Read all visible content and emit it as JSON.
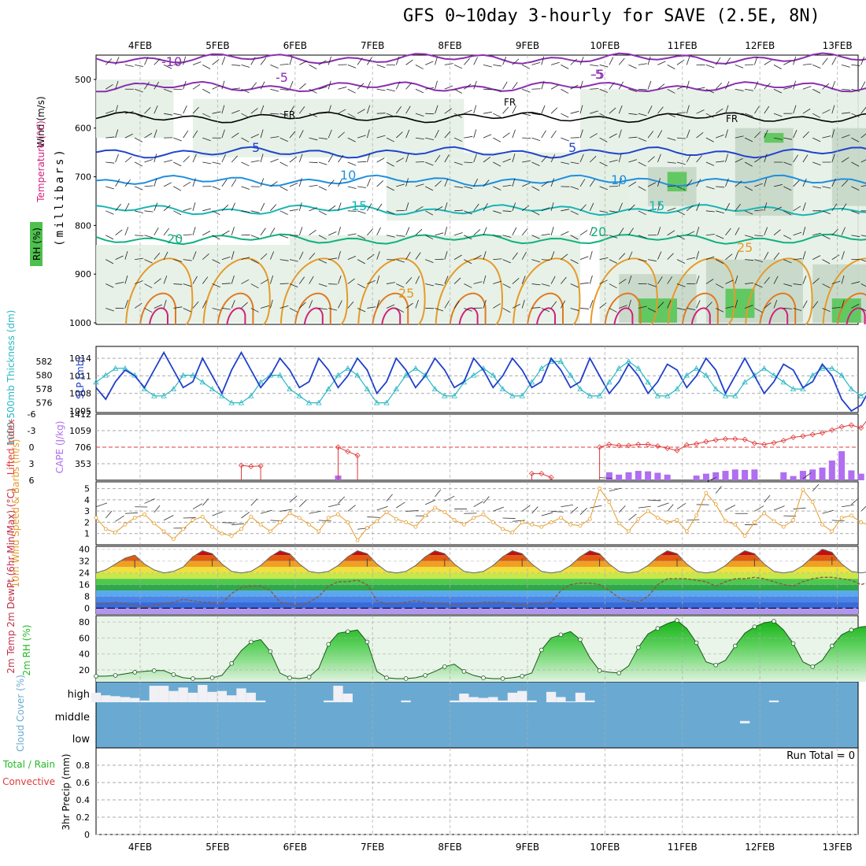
{
  "title": "GFS 0~10day 3-hourly for SAVE (2.5E, 8N)",
  "run_total_label": "Run Total = 0",
  "colors": {
    "grid": "#aaaaaa",
    "slp": "#1f3fcc",
    "thickness": "#2ab8c4",
    "li": "#e03a3a",
    "cape": "#b06ef0",
    "wind": "#e69a28",
    "dewpt": "#8a5a40",
    "rh": "#22bb22",
    "cloud": "#6aaad2",
    "cloud_white": "#f0f0f5"
  },
  "chart_data": [
    {
      "panel": "vertical_profile",
      "type": "line",
      "x_dates": [
        "4FEB",
        "5FEB",
        "6FEB",
        "7FEB",
        "8FEB",
        "9FEB",
        "10FEB",
        "11FEB",
        "12FEB",
        "13FEB"
      ],
      "ylabel": "(millibars)",
      "y_ticks": [
        "500",
        "600",
        "700",
        "800",
        "900",
        "1000"
      ],
      "ylim": [
        1000,
        450
      ],
      "legend": [
        "RH (%)",
        "Temperature (°C)",
        "Wind (m/s)"
      ],
      "isotherm_labels": [
        "-10",
        "-5",
        "FR",
        "FR",
        "FR",
        "-5",
        "5",
        "5",
        "10",
        "10",
        "15",
        "15",
        "20",
        "20",
        "25",
        "25",
        "-5"
      ],
      "isotherms": [
        {
          "label": "-10",
          "color": "#8a2fb0",
          "level": 457
        },
        {
          "label": "-5",
          "color": "#8a2fb0",
          "level": 515
        },
        {
          "label": "FR",
          "color": "#000000",
          "level": 578
        },
        {
          "label": "5",
          "color": "#2244cc",
          "level": 650
        },
        {
          "label": "10",
          "color": "#1f8fdf",
          "level": 708
        },
        {
          "label": "15",
          "color": "#18b4b4",
          "level": 768
        },
        {
          "label": "20",
          "color": "#10b080",
          "level": 828
        }
      ]
    },
    {
      "panel": "slp_thickness",
      "type": "line",
      "ylabel_left": "1000-500mb Thickness (dm)",
      "ylabel_right": "SLP (mb)",
      "left_ticks": [
        "576",
        "578",
        "580",
        "582"
      ],
      "right_ticks": [
        "1005",
        "1008",
        "1011",
        "1014"
      ],
      "series": [
        {
          "name": "SLP (mb)",
          "values": [
            1009,
            1007,
            1010,
            1012,
            1011,
            1009,
            1012,
            1015,
            1012,
            1009,
            1010,
            1014,
            1011,
            1008,
            1012,
            1015,
            1012,
            1009,
            1011,
            1014,
            1012,
            1009,
            1010,
            1014,
            1012,
            1009,
            1011,
            1014,
            1012,
            1008,
            1010,
            1014,
            1012,
            1009,
            1011,
            1014,
            1012,
            1009,
            1010,
            1014,
            1012,
            1009,
            1011,
            1014,
            1012,
            1009,
            1010,
            1014,
            1012,
            1009,
            1010,
            1014,
            1011,
            1008,
            1010,
            1013,
            1011,
            1008,
            1010,
            1013,
            1012,
            1009,
            1011,
            1014,
            1012,
            1008,
            1011,
            1014,
            1011,
            1008,
            1010,
            1013,
            1012,
            1009,
            1010,
            1013,
            1011,
            1007,
            1005,
            1006,
            1009,
            1012,
            1011,
            1009,
            1012,
            1013,
            1011,
            1008,
            1006,
            1007,
            1010,
            1012,
            1010,
            1008,
            1009,
            1010,
            1010
          ]
        },
        {
          "name": "Thickness (dm)",
          "values": [
            579,
            580,
            581,
            581,
            580,
            578,
            577,
            577,
            578,
            580,
            580,
            579,
            578,
            577,
            576,
            576,
            577,
            579,
            580,
            580,
            578,
            577,
            576,
            576,
            578,
            580,
            581,
            580,
            578,
            576,
            576,
            578,
            580,
            581,
            580,
            578,
            577,
            577,
            579,
            580,
            581,
            580,
            578,
            577,
            577,
            579,
            581,
            582,
            582,
            580,
            578,
            577,
            577,
            579,
            581,
            582,
            581,
            579,
            577,
            577,
            578,
            580,
            581,
            580,
            578,
            577,
            577,
            579,
            580,
            581,
            580,
            579,
            578,
            578,
            580,
            581,
            581,
            580,
            578,
            577,
            578,
            580,
            581,
            582,
            581,
            580,
            579,
            578,
            579,
            581,
            582,
            583,
            582,
            580,
            579,
            579,
            580
          ]
        }
      ]
    },
    {
      "panel": "li_cape",
      "type": "line+bar",
      "ylabel_left": "Lifted Index",
      "ylabel_right": "CAPE (J/kg)",
      "left_ticks": [
        "-6",
        "-3",
        "0",
        "3",
        "6"
      ],
      "right_ticks": [
        "353",
        "706",
        "1059",
        "1412"
      ],
      "li_series": [
        {
          "start": 15,
          "values": [
            3.3,
            3.5,
            3.4
          ]
        },
        {
          "start": 25,
          "values": [
            0,
            0.8,
            1.5
          ]
        },
        {
          "start": 45,
          "values": [
            4.8,
            4.8,
            5.5
          ]
        },
        {
          "start": 52,
          "values": [
            0,
            -0.5,
            -0.3,
            -0.3,
            -0.5,
            -0.5,
            -0.2,
            0.2,
            0.6,
            -0.4,
            -0.6,
            -1.0,
            -1.3,
            -1.5,
            -1.5,
            -1.4,
            -0.7,
            -0.5,
            -0.8,
            -1.2,
            -1.8,
            -2.0,
            -2.3,
            -2.6,
            -3.1,
            -3.7,
            -4.0,
            -3.5,
            -5.7,
            -5.0,
            -4.8,
            -4.5,
            -4.3,
            -4.0,
            -3.7,
            -3.3,
            -3.0,
            -2.8,
            -3.5,
            -5.2,
            -4.7,
            -4.3,
            -3.9,
            -3.4
          ]
        }
      ],
      "cape_bars": [
        {
          "i": 25,
          "v": 100
        },
        {
          "i": 53,
          "v": 170
        },
        {
          "i": 54,
          "v": 120
        },
        {
          "i": 55,
          "v": 170
        },
        {
          "i": 56,
          "v": 200
        },
        {
          "i": 57,
          "v": 190
        },
        {
          "i": 58,
          "v": 160
        },
        {
          "i": 59,
          "v": 120
        },
        {
          "i": 62,
          "v": 100
        },
        {
          "i": 63,
          "v": 140
        },
        {
          "i": 64,
          "v": 170
        },
        {
          "i": 65,
          "v": 200
        },
        {
          "i": 66,
          "v": 230
        },
        {
          "i": 67,
          "v": 220
        },
        {
          "i": 68,
          "v": 230
        },
        {
          "i": 71,
          "v": 170
        },
        {
          "i": 72,
          "v": 90
        },
        {
          "i": 73,
          "v": 200
        },
        {
          "i": 74,
          "v": 230
        },
        {
          "i": 75,
          "v": 270
        },
        {
          "i": 76,
          "v": 420
        },
        {
          "i": 77,
          "v": 620
        },
        {
          "i": 78,
          "v": 210
        },
        {
          "i": 79,
          "v": 140
        },
        {
          "i": 80,
          "v": 1150
        },
        {
          "i": 81,
          "v": 1260
        },
        {
          "i": 82,
          "v": 1080
        },
        {
          "i": 83,
          "v": 960
        },
        {
          "i": 84,
          "v": 850
        },
        {
          "i": 85,
          "v": 1070
        },
        {
          "i": 86,
          "v": 1090
        },
        {
          "i": 87,
          "v": 1010
        },
        {
          "i": 88,
          "v": 30
        },
        {
          "i": 90,
          "v": 1300
        },
        {
          "i": 91,
          "v": 1060
        },
        {
          "i": 92,
          "v": 1020
        },
        {
          "i": 93,
          "v": 980
        },
        {
          "i": 94,
          "v": 920
        }
      ]
    },
    {
      "panel": "wind10m",
      "type": "line",
      "ylabel": "10m Wind Speed & Barbs (m/s)",
      "y_ticks": [
        "1",
        "2",
        "3",
        "4",
        "5"
      ],
      "ylim": [
        0,
        5.6
      ],
      "values": [
        2.4,
        1.4,
        1.1,
        1.8,
        2.4,
        2.7,
        1.9,
        1.2,
        0.5,
        1.4,
        2.2,
        2.5,
        1.6,
        1.0,
        0.8,
        1.4,
        2.5,
        1.8,
        1.2,
        2.0,
        2.8,
        2.4,
        1.8,
        1.2,
        2.4,
        2.7,
        2.0,
        0.4,
        1.5,
        2.1,
        2.9,
        2.3,
        2.0,
        1.6,
        2.6,
        3.3,
        2.9,
        2.2,
        1.8,
        2.4,
        2.7,
        2.0,
        1.4,
        1.1,
        2.0,
        1.8,
        1.6,
        2.0,
        2.4,
        1.8,
        1.7,
        2.3,
        5.0,
        3.8,
        1.9,
        1.2,
        2.3,
        3.0,
        2.4,
        2.0,
        2.2,
        1.2,
        2.6,
        4.6,
        3.6,
        2.1,
        1.8,
        0.8,
        2.0,
        2.8,
        2.1,
        1.6,
        2.2,
        4.9,
        3.8,
        1.8,
        1.2,
        2.4,
        2.6,
        2.0,
        1.7,
        2.2,
        4.4,
        2.9,
        1.7,
        1.1,
        2.3,
        1.8,
        1.4,
        2.1,
        2.6,
        4.9,
        3.7,
        2.3,
        1.8,
        2.3,
        1.2
      ]
    },
    {
      "panel": "temp2m",
      "type": "area",
      "ylabel": "2m Temp 2m DewPt (6hr Min/Max) (°C)",
      "y_ticks": [
        "0",
        "8",
        "16",
        "24",
        "32",
        "40"
      ],
      "ylim": [
        -4,
        42
      ],
      "temp_values": [
        24,
        26,
        30,
        34,
        36,
        30,
        26,
        24,
        25,
        28,
        35,
        39,
        37,
        30,
        25,
        24,
        25,
        29,
        35,
        39,
        37,
        30,
        25,
        24,
        25,
        29,
        35,
        39,
        37,
        30,
        25,
        24,
        25,
        29,
        35,
        39,
        37,
        30,
        25,
        24,
        25,
        29,
        35,
        39,
        37,
        30,
        25,
        24,
        25,
        29,
        35,
        39,
        37,
        30,
        25,
        24,
        25,
        29,
        35,
        39,
        37,
        30,
        25,
        24,
        25,
        29,
        35,
        39,
        37,
        30,
        25,
        24,
        25,
        29,
        35,
        40,
        38,
        30,
        25,
        24,
        25,
        29,
        35,
        40,
        38,
        30,
        25,
        24,
        25,
        29,
        35,
        40,
        38,
        30,
        25,
        24,
        24
      ],
      "dewpt_values": [
        3,
        3,
        4,
        3,
        2,
        1,
        2,
        3,
        4,
        6,
        5,
        4,
        4,
        3,
        10,
        14,
        15,
        15,
        12,
        4,
        3,
        2,
        4,
        8,
        15,
        18,
        18,
        19,
        16,
        5,
        3,
        3,
        4,
        5,
        4,
        3,
        3,
        2,
        3,
        3,
        4,
        4,
        4,
        3,
        2,
        3,
        3,
        4,
        12,
        16,
        17,
        17,
        16,
        12,
        7,
        5,
        4,
        8,
        16,
        20,
        20,
        20,
        19,
        18,
        15,
        18,
        20,
        20,
        21,
        20,
        18,
        16,
        15,
        18,
        20,
        21,
        21,
        20,
        19,
        16,
        18,
        20,
        21,
        21,
        21,
        20,
        18,
        16,
        16,
        18,
        20,
        21,
        21,
        21,
        20,
        20,
        20
      ]
    },
    {
      "panel": "rh2m",
      "type": "area",
      "ylabel": "2m RH (%)",
      "y_ticks": [
        "20",
        "40",
        "60",
        "80"
      ],
      "ylim": [
        5,
        88
      ],
      "values": [
        12,
        12,
        13,
        15,
        17,
        18,
        19,
        19,
        14,
        10,
        9,
        9,
        10,
        13,
        28,
        44,
        55,
        58,
        43,
        16,
        10,
        9,
        11,
        22,
        52,
        66,
        68,
        70,
        55,
        18,
        10,
        9,
        9,
        10,
        13,
        18,
        24,
        27,
        18,
        13,
        10,
        9,
        9,
        10,
        12,
        16,
        45,
        60,
        64,
        68,
        58,
        35,
        19,
        17,
        16,
        25,
        48,
        65,
        72,
        78,
        82,
        72,
        54,
        30,
        26,
        32,
        50,
        66,
        74,
        79,
        81,
        70,
        53,
        30,
        24,
        32,
        50,
        64,
        70,
        74,
        75,
        68,
        55,
        38,
        30,
        42,
        63,
        76,
        81,
        83,
        84,
        70,
        53,
        40,
        42,
        58,
        80
      ]
    },
    {
      "panel": "cloud_cover",
      "type": "bar",
      "ylabel": "Cloud Cover (%)",
      "y_ticks": [
        "high",
        "middle",
        "low"
      ],
      "high_values": [
        0.55,
        0.4,
        0.35,
        0.3,
        0.25,
        0.1,
        0.95,
        0.95,
        0.65,
        0.85,
        0.55,
        1.0,
        0.6,
        0.65,
        0.4,
        0.8,
        0.55,
        0.1,
        0.0,
        0.0,
        0.0,
        0.0,
        0.0,
        0.0,
        0.1,
        0.95,
        0.5,
        0.0,
        0.0,
        0.0,
        0.0,
        0.0,
        0.1,
        0.0,
        0.0,
        0.0,
        0.0,
        0.1,
        0.5,
        0.3,
        0.25,
        0.3,
        0.1,
        0.55,
        0.65,
        0.1,
        0.0,
        0.6,
        0.3,
        0.05,
        0.55,
        0.1,
        0.0,
        0.0,
        0.0,
        0.0,
        0.0,
        0.0,
        0.0,
        0.0,
        0.0,
        0.0,
        0.0,
        0.0,
        0.0,
        0.0,
        0.0,
        0.0,
        0.0,
        0.0,
        0.1,
        0.0,
        0.0,
        0.0,
        0.0,
        0.0,
        0.0,
        0.0,
        0.0,
        0.0,
        0.0,
        0.0,
        0.0,
        0.0,
        0.0,
        0.0,
        0.1,
        0.0,
        0.0,
        0.0,
        0.0,
        0.0,
        0.0,
        0.0,
        0.0,
        0.0,
        0.0
      ],
      "middle_values": [
        0,
        0,
        0,
        0,
        0,
        0,
        0,
        0,
        0,
        0,
        0,
        0,
        0,
        0,
        0,
        0,
        0,
        0,
        0,
        0,
        0,
        0,
        0,
        0,
        0,
        0,
        0,
        0,
        0,
        0,
        0,
        0,
        0,
        0,
        0,
        0,
        0,
        0,
        0,
        0,
        0,
        0,
        0,
        0,
        0,
        0,
        0,
        0,
        0,
        0,
        0,
        0,
        0,
        0,
        0,
        0,
        0,
        0,
        0,
        0,
        0,
        0,
        0,
        0,
        0,
        0,
        0,
        0.1,
        0,
        0,
        0,
        0,
        0,
        0,
        0,
        0,
        0,
        0,
        0,
        0,
        0,
        0,
        0,
        0,
        0,
        0,
        0,
        0,
        0,
        0,
        0,
        0,
        0,
        0,
        0,
        0,
        0
      ]
    },
    {
      "panel": "precip",
      "type": "bar",
      "ylabel": "3hr Precip (mm)",
      "legend_left": [
        "Total / Rain",
        "Convective"
      ],
      "y_ticks": [
        "0",
        "0.2",
        "0.4",
        "0.6",
        "0.8"
      ],
      "ylim": [
        0,
        1
      ],
      "values": []
    }
  ]
}
